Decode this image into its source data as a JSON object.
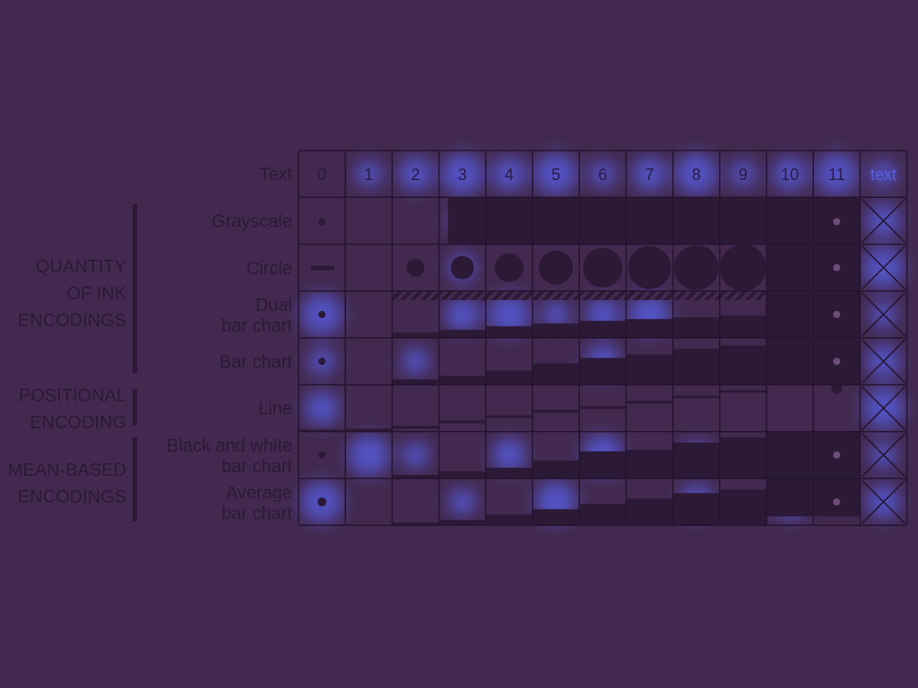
{
  "column_header_label": "Text",
  "columns": [
    "0",
    "1",
    "2",
    "3",
    "4",
    "5",
    "6",
    "7",
    "8",
    "9",
    "10",
    "11",
    "text"
  ],
  "rows": [
    {
      "id": "grayscale",
      "label": [
        "Grayscale"
      ]
    },
    {
      "id": "circle",
      "label": [
        "Circle"
      ]
    },
    {
      "id": "dual-bar",
      "label": [
        "Dual",
        "bar chart"
      ]
    },
    {
      "id": "bar",
      "label": [
        "Bar chart"
      ]
    },
    {
      "id": "line",
      "label": [
        "Line"
      ]
    },
    {
      "id": "bw-bar",
      "label": [
        "Black and white",
        "bar chart"
      ]
    },
    {
      "id": "avg-bar",
      "label": [
        "Average",
        "bar chart"
      ]
    }
  ],
  "groups": [
    {
      "id": "quantity-of-ink",
      "label": [
        "QUANTITY",
        "OF INK",
        "ENCODINGS"
      ]
    },
    {
      "id": "positional",
      "label": [
        "POSITIONAL",
        "ENCODING"
      ]
    },
    {
      "id": "mean-based",
      "label": [
        "MEAN-BASED",
        "ENCODINGS"
      ]
    }
  ],
  "colors": {
    "background": "#43294f",
    "dark_fill": "#2b1936",
    "grid_line": "#24142e",
    "heat_glow": "#5560e8",
    "group_bar": "#2b1936"
  }
}
